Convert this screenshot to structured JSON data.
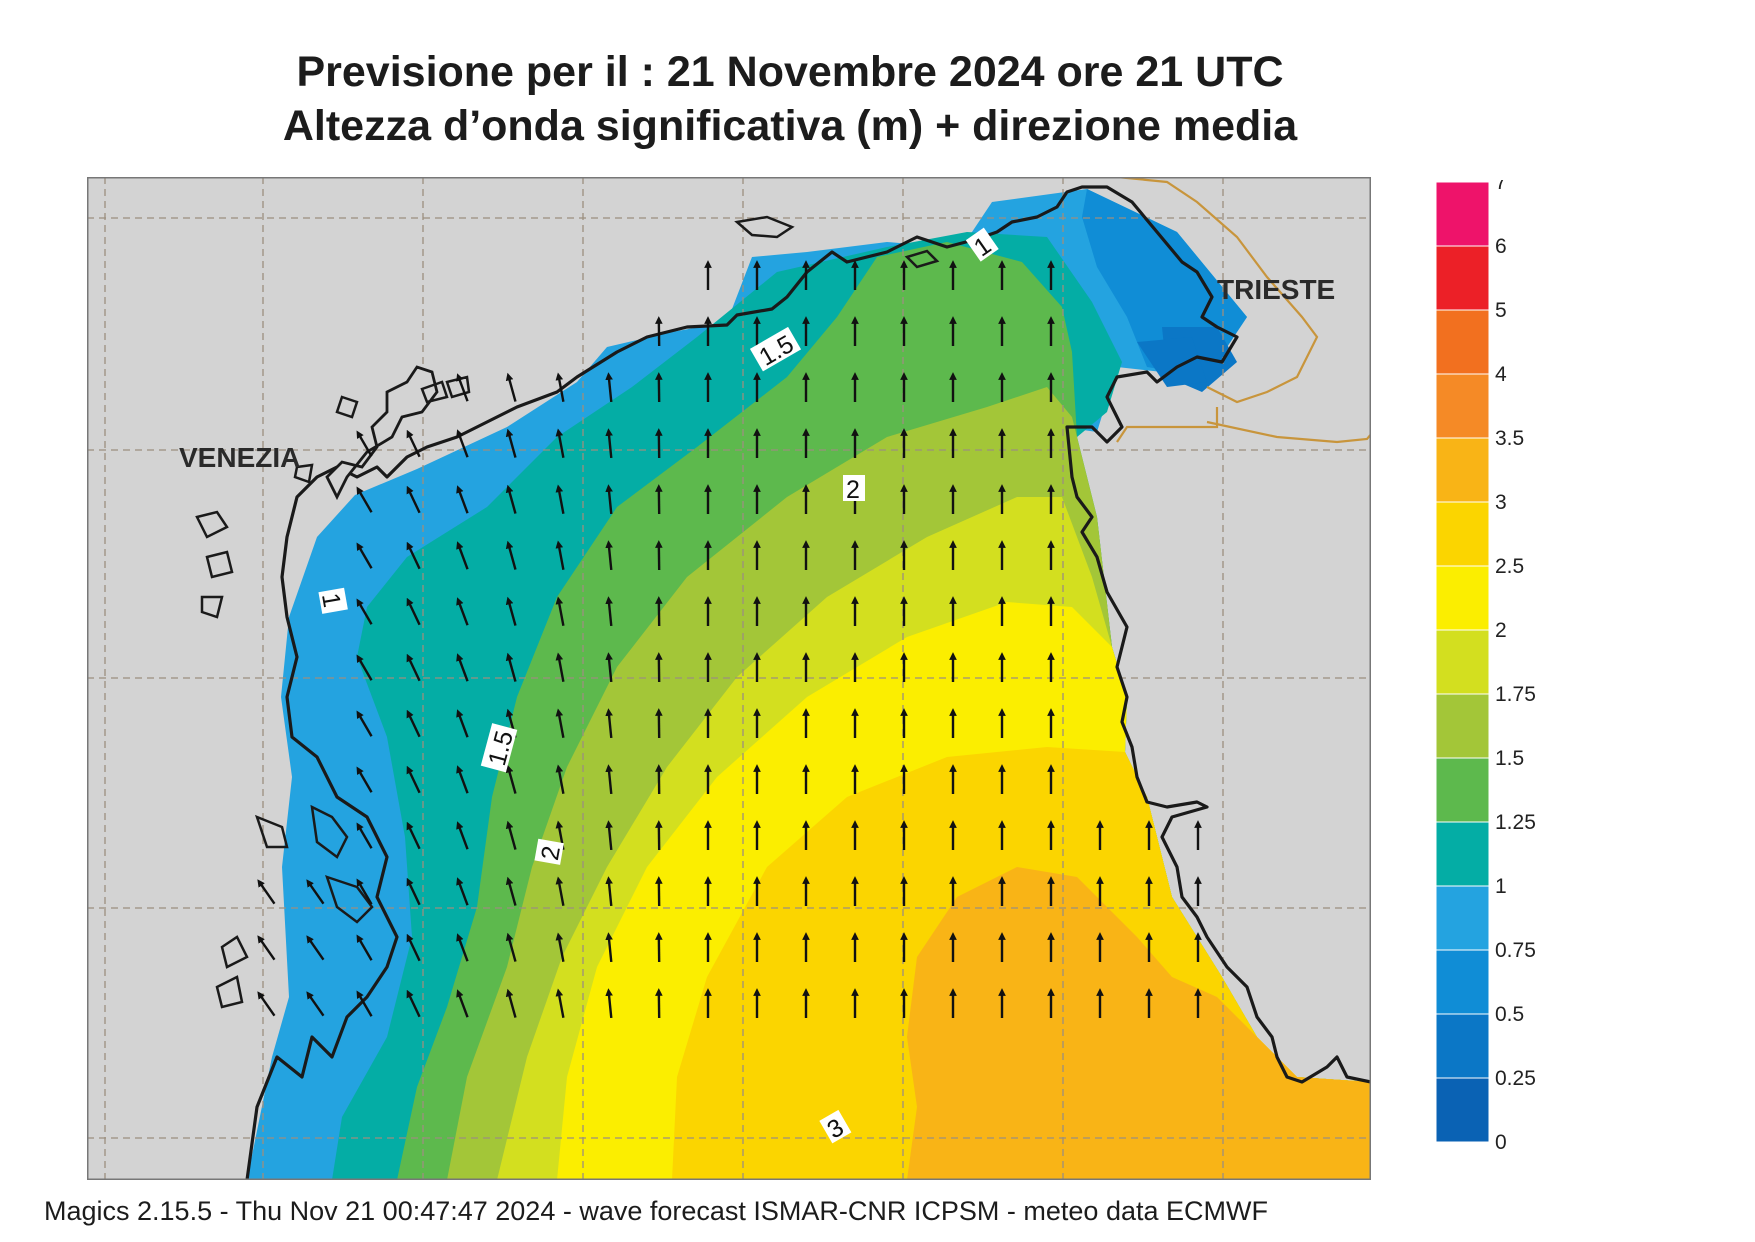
{
  "title": {
    "line1": "Previsione per il  :  21 Novembre  2024   ore 21 UTC",
    "line2": "Altezza d’onda significativa (m) + direzione media"
  },
  "map": {
    "place_labels": {
      "venezia": "VENEZIA",
      "trieste": "TRIESTE"
    },
    "contour_labels": [
      "1",
      "1.5",
      "2",
      "1",
      "1.5",
      "2",
      "3"
    ],
    "colors": {
      "land": "#d3d3d3",
      "coastline": "#1a1a1a",
      "border": "#c8953c",
      "grid": "#9c8f7f"
    }
  },
  "colorbar": {
    "levels": [
      "0",
      "0.25",
      "0.5",
      "0.75",
      "1",
      "1.25",
      "1.5",
      "1.75",
      "2",
      "2.5",
      "3",
      "3.5",
      "4",
      "5",
      "6",
      "7"
    ],
    "colors": [
      "#0a62b4",
      "#0b77c6",
      "#108dd6",
      "#24a3e0",
      "#04ada5",
      "#5db94d",
      "#a3c638",
      "#d3df1f",
      "#fbee00",
      "#fbd500",
      "#f9b416",
      "#f58a26",
      "#f2701f",
      "#ec2027",
      "#ee136a"
    ]
  },
  "footer": "Magics 2.15.5 - Thu Nov 21 00:47:47 2024 - wave forecast  ISMAR-CNR  ICPSM - meteo data   ECMWF"
}
